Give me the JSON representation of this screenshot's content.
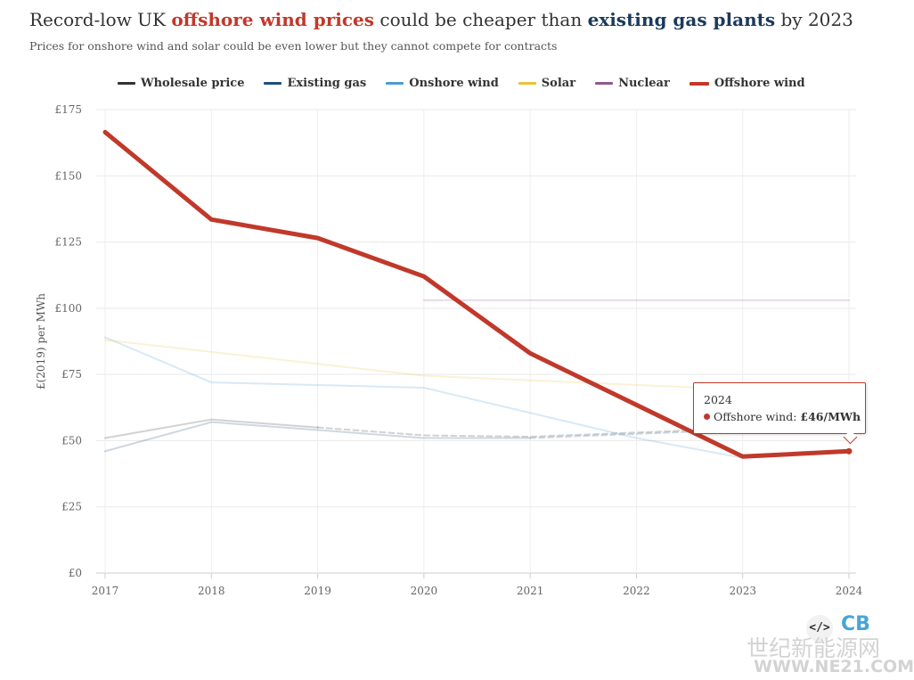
{
  "header": {
    "title_pre": "Record-low UK ",
    "title_hl1": "offshore wind prices",
    "title_mid": " could be cheaper than ",
    "title_hl2": "existing gas plants",
    "title_post": " by 2023",
    "subtitle": "Prices for onshore wind and solar could be even lower but they cannot compete for contracts"
  },
  "colors": {
    "title_hl1": "#c0392b",
    "title_hl2": "#1b3a5c"
  },
  "tooltip": {
    "year": "2024",
    "series_label": "Offshore wind: ",
    "value": "£46/MWh",
    "color": "#c0392b"
  },
  "branding": {
    "code_icon": "</>",
    "logo": "CB",
    "watermark": "世纪新能源网",
    "watermark_url": "WWW.NE21.COM"
  },
  "chart_data": {
    "type": "line",
    "title": "Record-low UK offshore wind prices could be cheaper than existing gas plants by 2023",
    "subtitle": "Prices for onshore wind and solar could be even lower but they cannot compete for contracts",
    "xlabel": "",
    "ylabel": "£(2019) per MWh",
    "x": [
      2017,
      2018,
      2019,
      2020,
      2021,
      2022,
      2023,
      2024
    ],
    "ylim": [
      0,
      175
    ],
    "yticks": [
      0,
      25,
      50,
      75,
      100,
      125,
      150,
      175
    ],
    "ytick_labels": [
      "£0",
      "£25",
      "£50",
      "£75",
      "£100",
      "£125",
      "£150",
      "£175"
    ],
    "grid": true,
    "legend_position": "top",
    "highlighted_series": "Offshore wind",
    "series": [
      {
        "name": "Wholesale price",
        "color": "#333333",
        "faded": true,
        "dashed_from": 2019,
        "points": [
          [
            2017,
            51
          ],
          [
            2018,
            58
          ],
          [
            2019,
            55
          ],
          [
            2020,
            52
          ],
          [
            2021,
            51.5
          ],
          [
            2022.6,
            54
          ]
        ]
      },
      {
        "name": "Existing gas",
        "color": "#1f4e79",
        "faded": true,
        "dashed_from": 2021,
        "points": [
          [
            2017,
            46
          ],
          [
            2018,
            57
          ],
          [
            2019,
            54
          ],
          [
            2020,
            51
          ],
          [
            2021,
            51
          ],
          [
            2022.6,
            53.5
          ]
        ]
      },
      {
        "name": "Onshore wind",
        "color": "#4c9bd6",
        "faded": true,
        "points": [
          [
            2017,
            89
          ],
          [
            2018,
            72
          ],
          [
            2020,
            70
          ],
          [
            2022,
            51
          ],
          [
            2023,
            43.5
          ]
        ]
      },
      {
        "name": "Solar",
        "color": "#e8c23a",
        "faded": true,
        "points": [
          [
            2017,
            88
          ],
          [
            2020,
            74.5
          ],
          [
            2022.6,
            70
          ]
        ]
      },
      {
        "name": "Nuclear",
        "color": "#8e5a8e",
        "faded": true,
        "points": [
          [
            2020,
            103
          ],
          [
            2024,
            103
          ]
        ]
      },
      {
        "name": "Offshore wind",
        "color": "#c0392b",
        "faded": false,
        "points": [
          [
            2017,
            166.5
          ],
          [
            2018,
            133.5
          ],
          [
            2019,
            126.5
          ],
          [
            2020,
            112
          ],
          [
            2021,
            83
          ],
          [
            2023,
            44
          ],
          [
            2024,
            46
          ]
        ]
      }
    ]
  }
}
